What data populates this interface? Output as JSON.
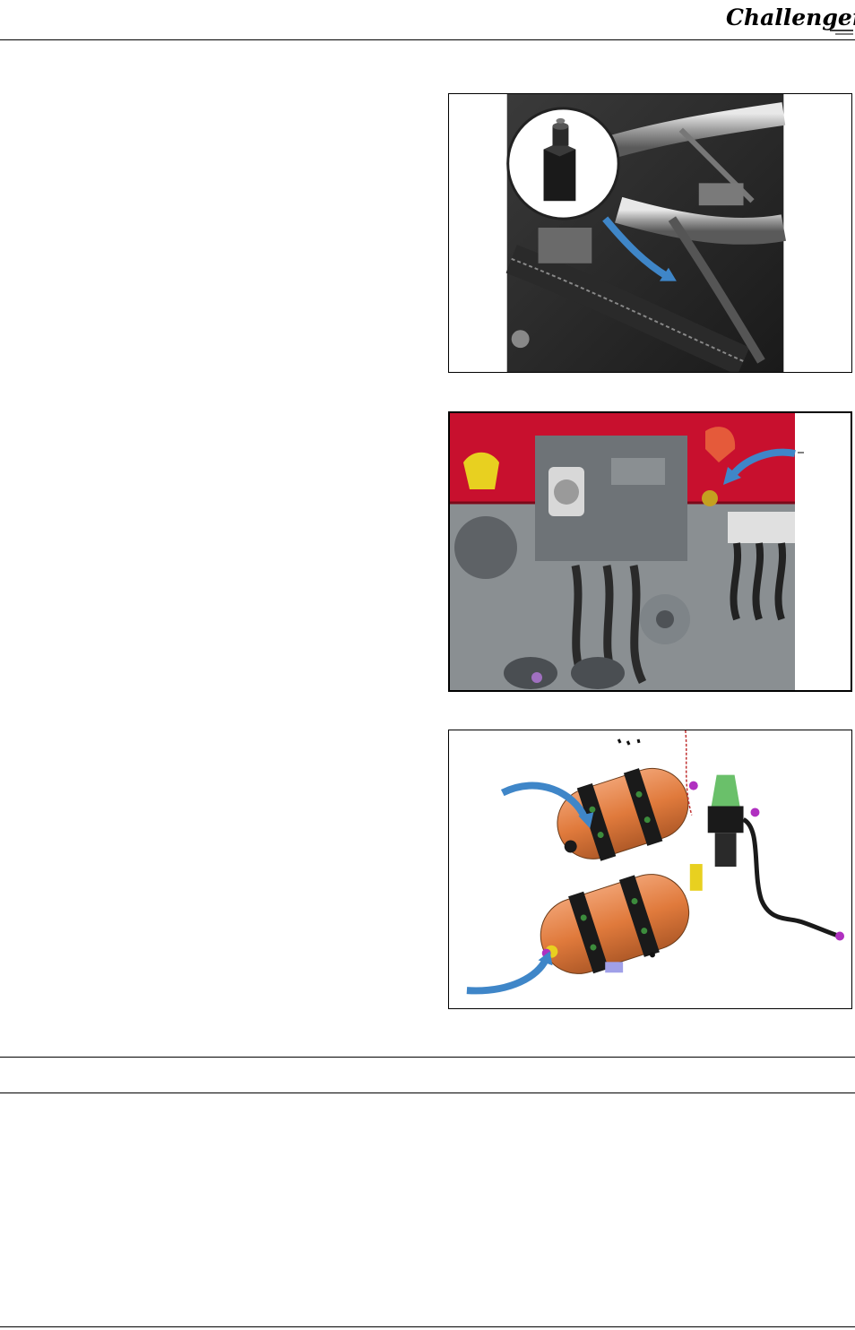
{
  "header": {
    "logo_text": "Challenger"
  },
  "figures": [
    {
      "icon": "engine-bleed-screw-photo"
    },
    {
      "icon": "trailer-brake-coupling-photo"
    },
    {
      "icon": "air-tank-assembly-illustration"
    }
  ],
  "colors": {
    "rule": "#000000",
    "arrow": "#3f86c8",
    "tractor_red": "#c8102e",
    "tank_orange": "#e07a3c"
  }
}
